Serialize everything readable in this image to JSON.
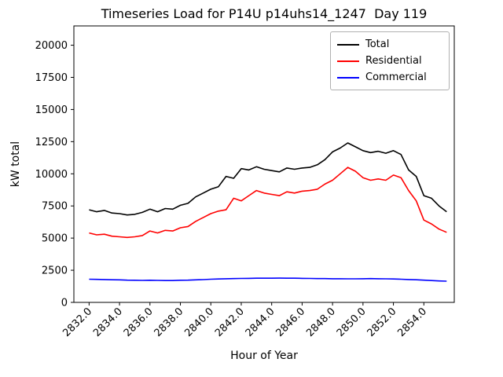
{
  "figure": {
    "title": "Timeseries Load for P14U p14uhs14_1247  Day 119",
    "xlabel": "Hour of Year",
    "ylabel": "kW total"
  },
  "chart_data": {
    "type": "line",
    "title": "Timeseries Load for P14U p14uhs14_1247  Day 119",
    "xlabel": "Hour of Year",
    "ylabel": "kW total",
    "grid": false,
    "legend_position": "upper right",
    "xlim": [
      2831.0,
      2856.0
    ],
    "ylim": [
      0,
      21500
    ],
    "yticks": [
      0,
      2500,
      5000,
      7500,
      10000,
      12500,
      15000,
      17500,
      20000
    ],
    "xticks": [
      2832,
      2834,
      2836,
      2838,
      2840,
      2842,
      2844,
      2846,
      2848,
      2850,
      2852,
      2854
    ],
    "xtick_labels": [
      "2832.0",
      "2834.0",
      "2836.0",
      "2838.0",
      "2840.0",
      "2842.0",
      "2844.0",
      "2846.0",
      "2848.0",
      "2850.0",
      "2852.0",
      "2854.0"
    ],
    "x_start": 2832.0,
    "x_step": 0.5,
    "series": [
      {
        "name": "Total",
        "color": "#000000",
        "values": [
          7200,
          7050,
          7150,
          6950,
          6900,
          6800,
          6850,
          7000,
          7250,
          7050,
          7300,
          7250,
          7550,
          7700,
          8200,
          8500,
          8800,
          9000,
          9800,
          9650,
          10400,
          10300,
          10550,
          10350,
          10250,
          10150,
          10450,
          10350,
          10450,
          10500,
          10700,
          11100,
          11700,
          12000,
          12400,
          12100,
          11800,
          11650,
          11750,
          11600,
          11800,
          11500,
          10300,
          9800,
          8300,
          8100,
          7500,
          7050
        ]
      },
      {
        "name": "Residential",
        "color": "#ff0000",
        "values": [
          5400,
          5250,
          5300,
          5150,
          5100,
          5050,
          5100,
          5200,
          5550,
          5400,
          5600,
          5550,
          5800,
          5900,
          6300,
          6600,
          6900,
          7100,
          7200,
          8100,
          7900,
          8300,
          8700,
          8500,
          8400,
          8300,
          8600,
          8500,
          8650,
          8700,
          8800,
          9200,
          9500,
          10000,
          10500,
          10200,
          9700,
          9500,
          9600,
          9500,
          9900,
          9700,
          8700,
          7900,
          6400,
          6100,
          5700,
          5450
        ]
      },
      {
        "name": "Commercial",
        "color": "#0000ff",
        "values": [
          1800,
          1790,
          1780,
          1760,
          1750,
          1730,
          1720,
          1710,
          1720,
          1710,
          1700,
          1700,
          1720,
          1730,
          1750,
          1770,
          1800,
          1820,
          1840,
          1850,
          1860,
          1870,
          1880,
          1880,
          1880,
          1890,
          1880,
          1880,
          1870,
          1860,
          1850,
          1850,
          1840,
          1840,
          1830,
          1830,
          1840,
          1850,
          1840,
          1830,
          1820,
          1800,
          1780,
          1760,
          1730,
          1700,
          1670,
          1650
        ]
      }
    ]
  }
}
